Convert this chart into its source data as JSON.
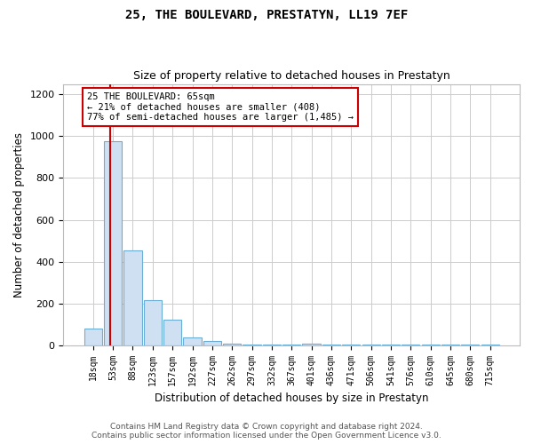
{
  "title": "25, THE BOULEVARD, PRESTATYN, LL19 7EF",
  "subtitle": "Size of property relative to detached houses in Prestatyn",
  "xlabel": "Distribution of detached houses by size in Prestatyn",
  "ylabel": "Number of detached properties",
  "bar_color": "#cfe0f3",
  "bar_edge_color": "#6aaed6",
  "categories": [
    "18sqm",
    "53sqm",
    "88sqm",
    "123sqm",
    "157sqm",
    "192sqm",
    "227sqm",
    "262sqm",
    "297sqm",
    "332sqm",
    "367sqm",
    "401sqm",
    "436sqm",
    "471sqm",
    "506sqm",
    "541sqm",
    "576sqm",
    "610sqm",
    "645sqm",
    "680sqm",
    "715sqm"
  ],
  "values": [
    80,
    975,
    455,
    215,
    120,
    38,
    18,
    8,
    5,
    4,
    3,
    8,
    1,
    1,
    1,
    1,
    1,
    1,
    1,
    1,
    1
  ],
  "ylim": [
    0,
    1250
  ],
  "yticks": [
    0,
    200,
    400,
    600,
    800,
    1000,
    1200
  ],
  "annotation_text": "25 THE BOULEVARD: 65sqm\n← 21% of detached houses are smaller (408)\n77% of semi-detached houses are larger (1,485) →",
  "annotation_box_color": "white",
  "annotation_box_edge_color": "#cc0000",
  "vline_color": "#cc0000",
  "footer_line1": "Contains HM Land Registry data © Crown copyright and database right 2024.",
  "footer_line2": "Contains public sector information licensed under the Open Government Licence v3.0.",
  "background_color": "white",
  "grid_color": "#cccccc"
}
